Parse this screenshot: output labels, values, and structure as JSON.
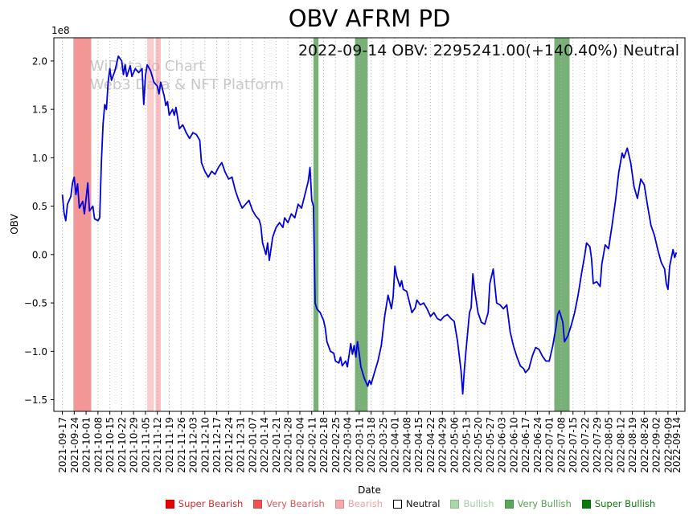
{
  "chart_data": {
    "type": "line",
    "title": "OBV AFRM PD",
    "annotation": "2022-09-14 OBV: 2295241.00(+140.40%) Neutral",
    "watermark": {
      "line1": "WiData.io Chart",
      "line2": "Web3 Data & NFT Platform"
    },
    "xlabel": "Date",
    "ylabel": "OBV",
    "y_offset_label": "1e8",
    "y_unit": "1e8",
    "grid": "vertical-dotted",
    "legend_position": "bottom",
    "xlim": [
      -5,
      367
    ],
    "ylim": [
      -1.62,
      2.24
    ],
    "yticks": [
      2.0,
      1.5,
      1.0,
      0.5,
      0.0,
      -0.5,
      -1.0,
      -1.5
    ],
    "x_tick_days": [
      0,
      7,
      14,
      21,
      28,
      35,
      42,
      49,
      56,
      63,
      70,
      77,
      84,
      91,
      98,
      105,
      112,
      119,
      126,
      133,
      140,
      147,
      154,
      161,
      168,
      175,
      182,
      189,
      196,
      203,
      210,
      217,
      224,
      231,
      238,
      245,
      252,
      259,
      266,
      273,
      280,
      287,
      294,
      301,
      308,
      315,
      322,
      329,
      336,
      343,
      350,
      357,
      362
    ],
    "x_tick_labels": [
      "2021-09-17",
      "2021-09-24",
      "2021-10-01",
      "2021-10-08",
      "2021-10-15",
      "2021-10-22",
      "2021-10-29",
      "2021-11-05",
      "2021-11-12",
      "2021-11-19",
      "2021-11-26",
      "2021-12-03",
      "2021-12-10",
      "2021-12-17",
      "2021-12-24",
      "2021-12-31",
      "2022-01-07",
      "2022-01-14",
      "2022-01-21",
      "2022-01-28",
      "2022-02-04",
      "2022-02-11",
      "2022-02-18",
      "2022-02-25",
      "2022-03-04",
      "2022-03-11",
      "2022-03-18",
      "2022-03-25",
      "2022-04-01",
      "2022-04-08",
      "2022-04-15",
      "2022-04-22",
      "2022-04-29",
      "2022-05-06",
      "2022-05-13",
      "2022-05-20",
      "2022-05-27",
      "2022-06-03",
      "2022-06-10",
      "2022-06-17",
      "2022-06-24",
      "2022-07-01",
      "2022-07-08",
      "2022-07-15",
      "2022-07-22",
      "2022-07-29",
      "2022-08-05",
      "2022-08-12",
      "2022-08-19",
      "2022-08-26",
      "2022-09-02",
      "2022-09-09",
      "2022-09-14"
    ],
    "series": [
      {
        "name": "OBV",
        "color": "#0000e0",
        "points": [
          [
            0,
            0.62
          ],
          [
            1,
            0.43
          ],
          [
            2,
            0.35
          ],
          [
            3,
            0.52
          ],
          [
            5,
            0.6
          ],
          [
            6,
            0.74
          ],
          [
            7,
            0.8
          ],
          [
            8,
            0.62
          ],
          [
            9,
            0.73
          ],
          [
            10,
            0.48
          ],
          [
            12,
            0.55
          ],
          [
            13,
            0.42
          ],
          [
            15,
            0.74
          ],
          [
            16,
            0.45
          ],
          [
            18,
            0.5
          ],
          [
            19,
            0.37
          ],
          [
            21,
            0.35
          ],
          [
            22,
            0.38
          ],
          [
            23,
            0.95
          ],
          [
            24,
            1.35
          ],
          [
            25,
            1.55
          ],
          [
            26,
            1.5
          ],
          [
            27,
            1.78
          ],
          [
            28,
            1.92
          ],
          [
            29,
            1.8
          ],
          [
            31,
            1.9
          ],
          [
            33,
            2.05
          ],
          [
            35,
            2.0
          ],
          [
            36,
            1.86
          ],
          [
            37,
            1.96
          ],
          [
            38,
            1.84
          ],
          [
            40,
            1.95
          ],
          [
            41,
            1.84
          ],
          [
            43,
            1.92
          ],
          [
            45,
            1.88
          ],
          [
            47,
            1.92
          ],
          [
            48,
            1.55
          ],
          [
            49,
            1.85
          ],
          [
            50,
            1.96
          ],
          [
            52,
            1.9
          ],
          [
            54,
            1.78
          ],
          [
            56,
            1.74
          ],
          [
            57,
            1.66
          ],
          [
            58,
            1.78
          ],
          [
            60,
            1.64
          ],
          [
            61,
            1.54
          ],
          [
            62,
            1.58
          ],
          [
            63,
            1.44
          ],
          [
            65,
            1.5
          ],
          [
            66,
            1.44
          ],
          [
            67,
            1.52
          ],
          [
            69,
            1.3
          ],
          [
            71,
            1.34
          ],
          [
            73,
            1.26
          ],
          [
            75,
            1.2
          ],
          [
            77,
            1.26
          ],
          [
            79,
            1.24
          ],
          [
            81,
            1.18
          ],
          [
            82,
            0.95
          ],
          [
            84,
            0.86
          ],
          [
            86,
            0.8
          ],
          [
            88,
            0.86
          ],
          [
            90,
            0.83
          ],
          [
            92,
            0.9
          ],
          [
            94,
            0.95
          ],
          [
            96,
            0.85
          ],
          [
            98,
            0.78
          ],
          [
            100,
            0.8
          ],
          [
            102,
            0.66
          ],
          [
            104,
            0.56
          ],
          [
            106,
            0.48
          ],
          [
            108,
            0.52
          ],
          [
            110,
            0.56
          ],
          [
            112,
            0.46
          ],
          [
            114,
            0.4
          ],
          [
            116,
            0.36
          ],
          [
            117,
            0.3
          ],
          [
            118,
            0.12
          ],
          [
            120,
            0.0
          ],
          [
            121,
            0.12
          ],
          [
            122,
            -0.06
          ],
          [
            124,
            0.18
          ],
          [
            126,
            0.28
          ],
          [
            128,
            0.33
          ],
          [
            130,
            0.28
          ],
          [
            131,
            0.38
          ],
          [
            133,
            0.33
          ],
          [
            135,
            0.42
          ],
          [
            137,
            0.38
          ],
          [
            139,
            0.52
          ],
          [
            141,
            0.48
          ],
          [
            143,
            0.62
          ],
          [
            145,
            0.76
          ],
          [
            146,
            0.9
          ],
          [
            147,
            0.56
          ],
          [
            148,
            0.5
          ],
          [
            149,
            -0.5
          ],
          [
            150,
            -0.56
          ],
          [
            152,
            -0.6
          ],
          [
            154,
            -0.68
          ],
          [
            155,
            -0.76
          ],
          [
            156,
            -0.9
          ],
          [
            158,
            -1.0
          ],
          [
            160,
            -1.02
          ],
          [
            161,
            -1.1
          ],
          [
            163,
            -1.12
          ],
          [
            164,
            -1.06
          ],
          [
            165,
            -1.15
          ],
          [
            167,
            -1.1
          ],
          [
            168,
            -1.16
          ],
          [
            169,
            -1.04
          ],
          [
            170,
            -0.92
          ],
          [
            171,
            -1.03
          ],
          [
            172,
            -0.94
          ],
          [
            173,
            -1.06
          ],
          [
            174,
            -0.9
          ],
          [
            175,
            -1.02
          ],
          [
            176,
            -1.16
          ],
          [
            178,
            -1.28
          ],
          [
            180,
            -1.36
          ],
          [
            181,
            -1.3
          ],
          [
            182,
            -1.34
          ],
          [
            184,
            -1.22
          ],
          [
            186,
            -1.1
          ],
          [
            188,
            -0.94
          ],
          [
            190,
            -0.64
          ],
          [
            192,
            -0.42
          ],
          [
            194,
            -0.56
          ],
          [
            195,
            -0.44
          ],
          [
            196,
            -0.12
          ],
          [
            197,
            -0.22
          ],
          [
            199,
            -0.33
          ],
          [
            200,
            -0.27
          ],
          [
            201,
            -0.36
          ],
          [
            203,
            -0.38
          ],
          [
            205,
            -0.52
          ],
          [
            206,
            -0.6
          ],
          [
            208,
            -0.55
          ],
          [
            209,
            -0.47
          ],
          [
            211,
            -0.52
          ],
          [
            213,
            -0.5
          ],
          [
            215,
            -0.56
          ],
          [
            217,
            -0.64
          ],
          [
            219,
            -0.6
          ],
          [
            221,
            -0.66
          ],
          [
            223,
            -0.68
          ],
          [
            225,
            -0.64
          ],
          [
            227,
            -0.62
          ],
          [
            229,
            -0.66
          ],
          [
            231,
            -0.69
          ],
          [
            233,
            -0.9
          ],
          [
            235,
            -1.2
          ],
          [
            236,
            -1.44
          ],
          [
            237,
            -1.18
          ],
          [
            238,
            -0.98
          ],
          [
            240,
            -0.6
          ],
          [
            241,
            -0.55
          ],
          [
            242,
            -0.2
          ],
          [
            243,
            -0.36
          ],
          [
            245,
            -0.6
          ],
          [
            247,
            -0.7
          ],
          [
            249,
            -0.72
          ],
          [
            251,
            -0.6
          ],
          [
            252,
            -0.3
          ],
          [
            254,
            -0.15
          ],
          [
            256,
            -0.5
          ],
          [
            258,
            -0.52
          ],
          [
            260,
            -0.56
          ],
          [
            262,
            -0.52
          ],
          [
            264,
            -0.8
          ],
          [
            266,
            -0.95
          ],
          [
            268,
            -1.06
          ],
          [
            270,
            -1.15
          ],
          [
            272,
            -1.18
          ],
          [
            273,
            -1.22
          ],
          [
            275,
            -1.18
          ],
          [
            277,
            -1.05
          ],
          [
            279,
            -0.96
          ],
          [
            281,
            -0.98
          ],
          [
            283,
            -1.05
          ],
          [
            285,
            -1.1
          ],
          [
            287,
            -1.1
          ],
          [
            289,
            -0.95
          ],
          [
            291,
            -0.75
          ],
          [
            292,
            -0.62
          ],
          [
            293,
            -0.58
          ],
          [
            295,
            -0.7
          ],
          [
            296,
            -0.9
          ],
          [
            298,
            -0.84
          ],
          [
            300,
            -0.73
          ],
          [
            302,
            -0.6
          ],
          [
            304,
            -0.42
          ],
          [
            306,
            -0.2
          ],
          [
            308,
            0.0
          ],
          [
            309,
            0.12
          ],
          [
            311,
            0.08
          ],
          [
            312,
            -0.05
          ],
          [
            313,
            -0.3
          ],
          [
            315,
            -0.28
          ],
          [
            317,
            -0.33
          ],
          [
            318,
            -0.1
          ],
          [
            320,
            0.1
          ],
          [
            322,
            0.06
          ],
          [
            324,
            0.3
          ],
          [
            326,
            0.55
          ],
          [
            328,
            0.85
          ],
          [
            330,
            1.05
          ],
          [
            331,
            1.0
          ],
          [
            333,
            1.1
          ],
          [
            335,
            0.95
          ],
          [
            337,
            0.7
          ],
          [
            339,
            0.58
          ],
          [
            341,
            0.78
          ],
          [
            343,
            0.72
          ],
          [
            345,
            0.5
          ],
          [
            347,
            0.3
          ],
          [
            349,
            0.2
          ],
          [
            351,
            0.05
          ],
          [
            353,
            -0.08
          ],
          [
            355,
            -0.15
          ],
          [
            356,
            -0.3
          ],
          [
            357,
            -0.36
          ],
          [
            358,
            -0.12
          ],
          [
            360,
            0.05
          ],
          [
            361,
            -0.03
          ],
          [
            362,
            0.023
          ]
        ]
      }
    ],
    "bands": [
      {
        "label": "Very Bearish",
        "color": "#ee5555",
        "opacity": 0.62,
        "from_day": 6.5,
        "to_day": 17
      },
      {
        "label": "Bearish",
        "color": "#f9aaaa",
        "opacity": 0.6,
        "from_day": 50,
        "to_day": 54
      },
      {
        "label": "Bearish",
        "color": "#f59098",
        "opacity": 0.6,
        "from_day": 55,
        "to_day": 58
      },
      {
        "label": "Very Bullish",
        "color": "#3f8f3f",
        "opacity": 0.7,
        "from_day": 148,
        "to_day": 151
      },
      {
        "label": "Very Bullish",
        "color": "#3f8f3f",
        "opacity": 0.7,
        "from_day": 172.5,
        "to_day": 180
      },
      {
        "label": "Very Bullish",
        "color": "#3f8f3f",
        "opacity": 0.7,
        "from_day": 290,
        "to_day": 299
      }
    ],
    "legend": [
      {
        "label": "Super Bearish",
        "color": "#e60000",
        "text_color": "#d42a2a",
        "border": ""
      },
      {
        "label": "Very Bearish",
        "color": "#f05050",
        "text_color": "#e05555",
        "border": ""
      },
      {
        "label": "Bearish",
        "color": "#f8a8a8",
        "text_color": "#f0a0a0",
        "border": ""
      },
      {
        "label": "Neutral",
        "color": "#ffffff",
        "text_color": "#111111",
        "border": "#000000"
      },
      {
        "label": "Bullish",
        "color": "#a8d8a8",
        "text_color": "#9fce9f",
        "border": ""
      },
      {
        "label": "Very Bullish",
        "color": "#58a858",
        "text_color": "#55a055",
        "border": ""
      },
      {
        "label": "Super Bullish",
        "color": "#0a7a0a",
        "text_color": "#0a7a0a",
        "border": ""
      }
    ]
  }
}
